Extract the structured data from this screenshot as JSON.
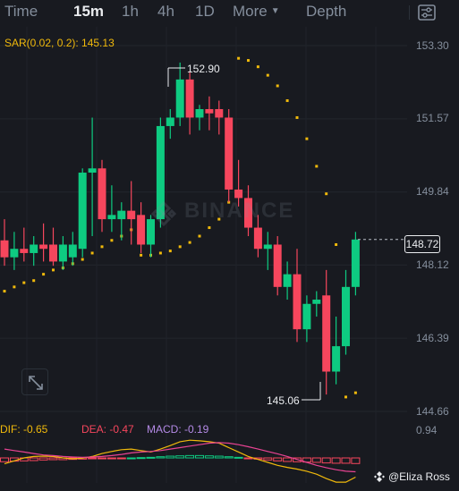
{
  "toolbar": {
    "items": [
      "Time",
      "15m",
      "1h",
      "4h",
      "1D",
      "More",
      "Depth"
    ],
    "active": "15m",
    "settings_icon": "sliders-settings-icon",
    "more_icon": "caret-down-icon"
  },
  "indicators": {
    "sar_label": "SAR(0.02, 0.2): 145.13",
    "dif_label": "DIF: -0.65",
    "dea_label": "DEA: -0.47",
    "macd_label": "MACD: -0.19"
  },
  "price_axis": {
    "labels": [
      "153.30",
      "151.57",
      "149.84",
      "148.12",
      "146.39",
      "144.66",
      "0.94"
    ],
    "current_price": "148.72"
  },
  "markers": {
    "high_label": "152.90",
    "low_label": "145.06"
  },
  "watermark": {
    "text": "BINANCE",
    "icon": "binance-logo-icon"
  },
  "expand_icon": "expand-arrows-icon",
  "credit": {
    "text": "@Eliza Ross",
    "icon": "binance-square-icon"
  },
  "colors": {
    "up": "#0ecb81",
    "down": "#f6465d",
    "sar": "#f0b90b",
    "dif": "#f0b90b",
    "dea": "#f6465d",
    "macd": "#b48ae6",
    "background": "#181a20",
    "text": "#848e9c"
  },
  "chart_data": {
    "type": "candlestick",
    "interval": "15m",
    "ylim": [
      144.66,
      153.3
    ],
    "y_ticks": [
      153.3,
      151.57,
      149.84,
      148.12,
      146.39,
      144.66
    ],
    "candles": [
      {
        "o": 148.7,
        "h": 149.2,
        "l": 148.1,
        "c": 148.3
      },
      {
        "o": 148.3,
        "h": 148.9,
        "l": 148.0,
        "c": 148.5
      },
      {
        "o": 148.5,
        "h": 149.0,
        "l": 148.2,
        "c": 148.4
      },
      {
        "o": 148.4,
        "h": 148.8,
        "l": 148.1,
        "c": 148.6
      },
      {
        "o": 148.6,
        "h": 149.1,
        "l": 148.2,
        "c": 148.5
      },
      {
        "o": 148.6,
        "h": 149.0,
        "l": 148.1,
        "c": 148.2
      },
      {
        "o": 148.2,
        "h": 148.8,
        "l": 148.0,
        "c": 148.6
      },
      {
        "o": 148.3,
        "h": 148.9,
        "l": 148.1,
        "c": 148.6
      },
      {
        "o": 148.5,
        "h": 150.4,
        "l": 148.3,
        "c": 150.3
      },
      {
        "o": 150.3,
        "h": 151.6,
        "l": 148.8,
        "c": 150.4
      },
      {
        "o": 150.4,
        "h": 150.6,
        "l": 148.9,
        "c": 149.2
      },
      {
        "o": 149.2,
        "h": 150.0,
        "l": 148.9,
        "c": 149.3
      },
      {
        "o": 149.2,
        "h": 149.6,
        "l": 148.7,
        "c": 149.4
      },
      {
        "o": 149.4,
        "h": 150.1,
        "l": 148.6,
        "c": 149.2
      },
      {
        "o": 149.3,
        "h": 149.6,
        "l": 148.4,
        "c": 148.6
      },
      {
        "o": 148.6,
        "h": 149.3,
        "l": 148.3,
        "c": 149.2
      },
      {
        "o": 149.2,
        "h": 151.6,
        "l": 149.0,
        "c": 151.4
      },
      {
        "o": 151.4,
        "h": 151.8,
        "l": 151.1,
        "c": 151.6
      },
      {
        "o": 151.6,
        "h": 152.9,
        "l": 151.4,
        "c": 152.5
      },
      {
        "o": 152.5,
        "h": 152.7,
        "l": 151.2,
        "c": 151.6
      },
      {
        "o": 151.6,
        "h": 151.9,
        "l": 151.3,
        "c": 151.8
      },
      {
        "o": 151.8,
        "h": 152.1,
        "l": 151.3,
        "c": 151.7
      },
      {
        "o": 151.8,
        "h": 152.0,
        "l": 151.2,
        "c": 151.6
      },
      {
        "o": 151.6,
        "h": 151.8,
        "l": 149.6,
        "c": 149.9
      },
      {
        "o": 149.9,
        "h": 150.6,
        "l": 149.5,
        "c": 149.7
      },
      {
        "o": 149.7,
        "h": 150.0,
        "l": 148.8,
        "c": 149.0
      },
      {
        "o": 149.0,
        "h": 149.3,
        "l": 148.3,
        "c": 148.5
      },
      {
        "o": 148.5,
        "h": 148.9,
        "l": 148.0,
        "c": 148.6
      },
      {
        "o": 148.6,
        "h": 148.8,
        "l": 147.4,
        "c": 147.6
      },
      {
        "o": 147.6,
        "h": 148.2,
        "l": 147.3,
        "c": 147.9
      },
      {
        "o": 147.9,
        "h": 148.5,
        "l": 146.3,
        "c": 146.6
      },
      {
        "o": 146.6,
        "h": 147.4,
        "l": 146.3,
        "c": 147.2
      },
      {
        "o": 147.2,
        "h": 147.5,
        "l": 146.9,
        "c": 147.3
      },
      {
        "o": 147.4,
        "h": 148.0,
        "l": 145.06,
        "c": 145.6
      },
      {
        "o": 145.6,
        "h": 146.9,
        "l": 145.3,
        "c": 146.2
      },
      {
        "o": 146.2,
        "h": 148.0,
        "l": 146.0,
        "c": 147.6
      },
      {
        "o": 147.6,
        "h": 148.9,
        "l": 147.4,
        "c": 148.72
      }
    ],
    "sar_points": [
      147.5,
      147.6,
      147.7,
      147.75,
      147.9,
      148.0,
      148.05,
      148.15,
      148.25,
      148.4,
      148.55,
      148.7,
      148.8,
      148.95,
      148.35,
      148.35,
      148.4,
      148.45,
      148.55,
      148.65,
      148.8,
      149.0,
      149.2,
      149.6,
      153.0,
      152.95,
      152.8,
      152.6,
      152.35,
      152.0,
      151.6,
      151.1,
      150.45,
      149.8,
      148.6,
      145.0,
      145.1
    ],
    "macd_hist": [
      -0.13,
      -0.11,
      -0.1,
      -0.09,
      -0.07,
      -0.06,
      -0.06,
      -0.05,
      -0.04,
      -0.03,
      -0.02,
      -0.02,
      -0.01,
      0.0,
      0.01,
      0.02,
      0.04,
      0.06,
      0.07,
      0.08,
      0.08,
      0.07,
      0.06,
      0.04,
      0.02,
      -0.01,
      -0.04,
      -0.07,
      -0.1,
      -0.12,
      -0.13,
      -0.14,
      -0.15,
      -0.17,
      -0.18,
      -0.18,
      -0.19
    ],
    "dif_line": [
      -0.2,
      -0.1,
      0.0,
      0.05,
      0.06,
      0.05,
      0.0,
      -0.03,
      -0.01,
      0.05,
      0.15,
      0.22,
      0.28,
      0.3,
      0.25,
      0.2,
      0.3,
      0.42,
      0.55,
      0.6,
      0.58,
      0.55,
      0.5,
      0.35,
      0.2,
      0.05,
      -0.05,
      -0.15,
      -0.25,
      -0.32,
      -0.38,
      -0.45,
      -0.55,
      -0.7,
      -0.82,
      -0.82,
      -0.65
    ],
    "dea_line": [
      0.3,
      0.25,
      0.2,
      0.15,
      0.1,
      0.08,
      0.05,
      0.03,
      0.02,
      0.03,
      0.05,
      0.08,
      0.12,
      0.17,
      0.2,
      0.22,
      0.25,
      0.3,
      0.35,
      0.4,
      0.45,
      0.5,
      0.52,
      0.5,
      0.45,
      0.38,
      0.3,
      0.22,
      0.14,
      0.05,
      -0.05,
      -0.15,
      -0.25,
      -0.33,
      -0.4,
      -0.45,
      -0.47
    ],
    "macd_ylim": [
      -1.0,
      0.94
    ]
  }
}
